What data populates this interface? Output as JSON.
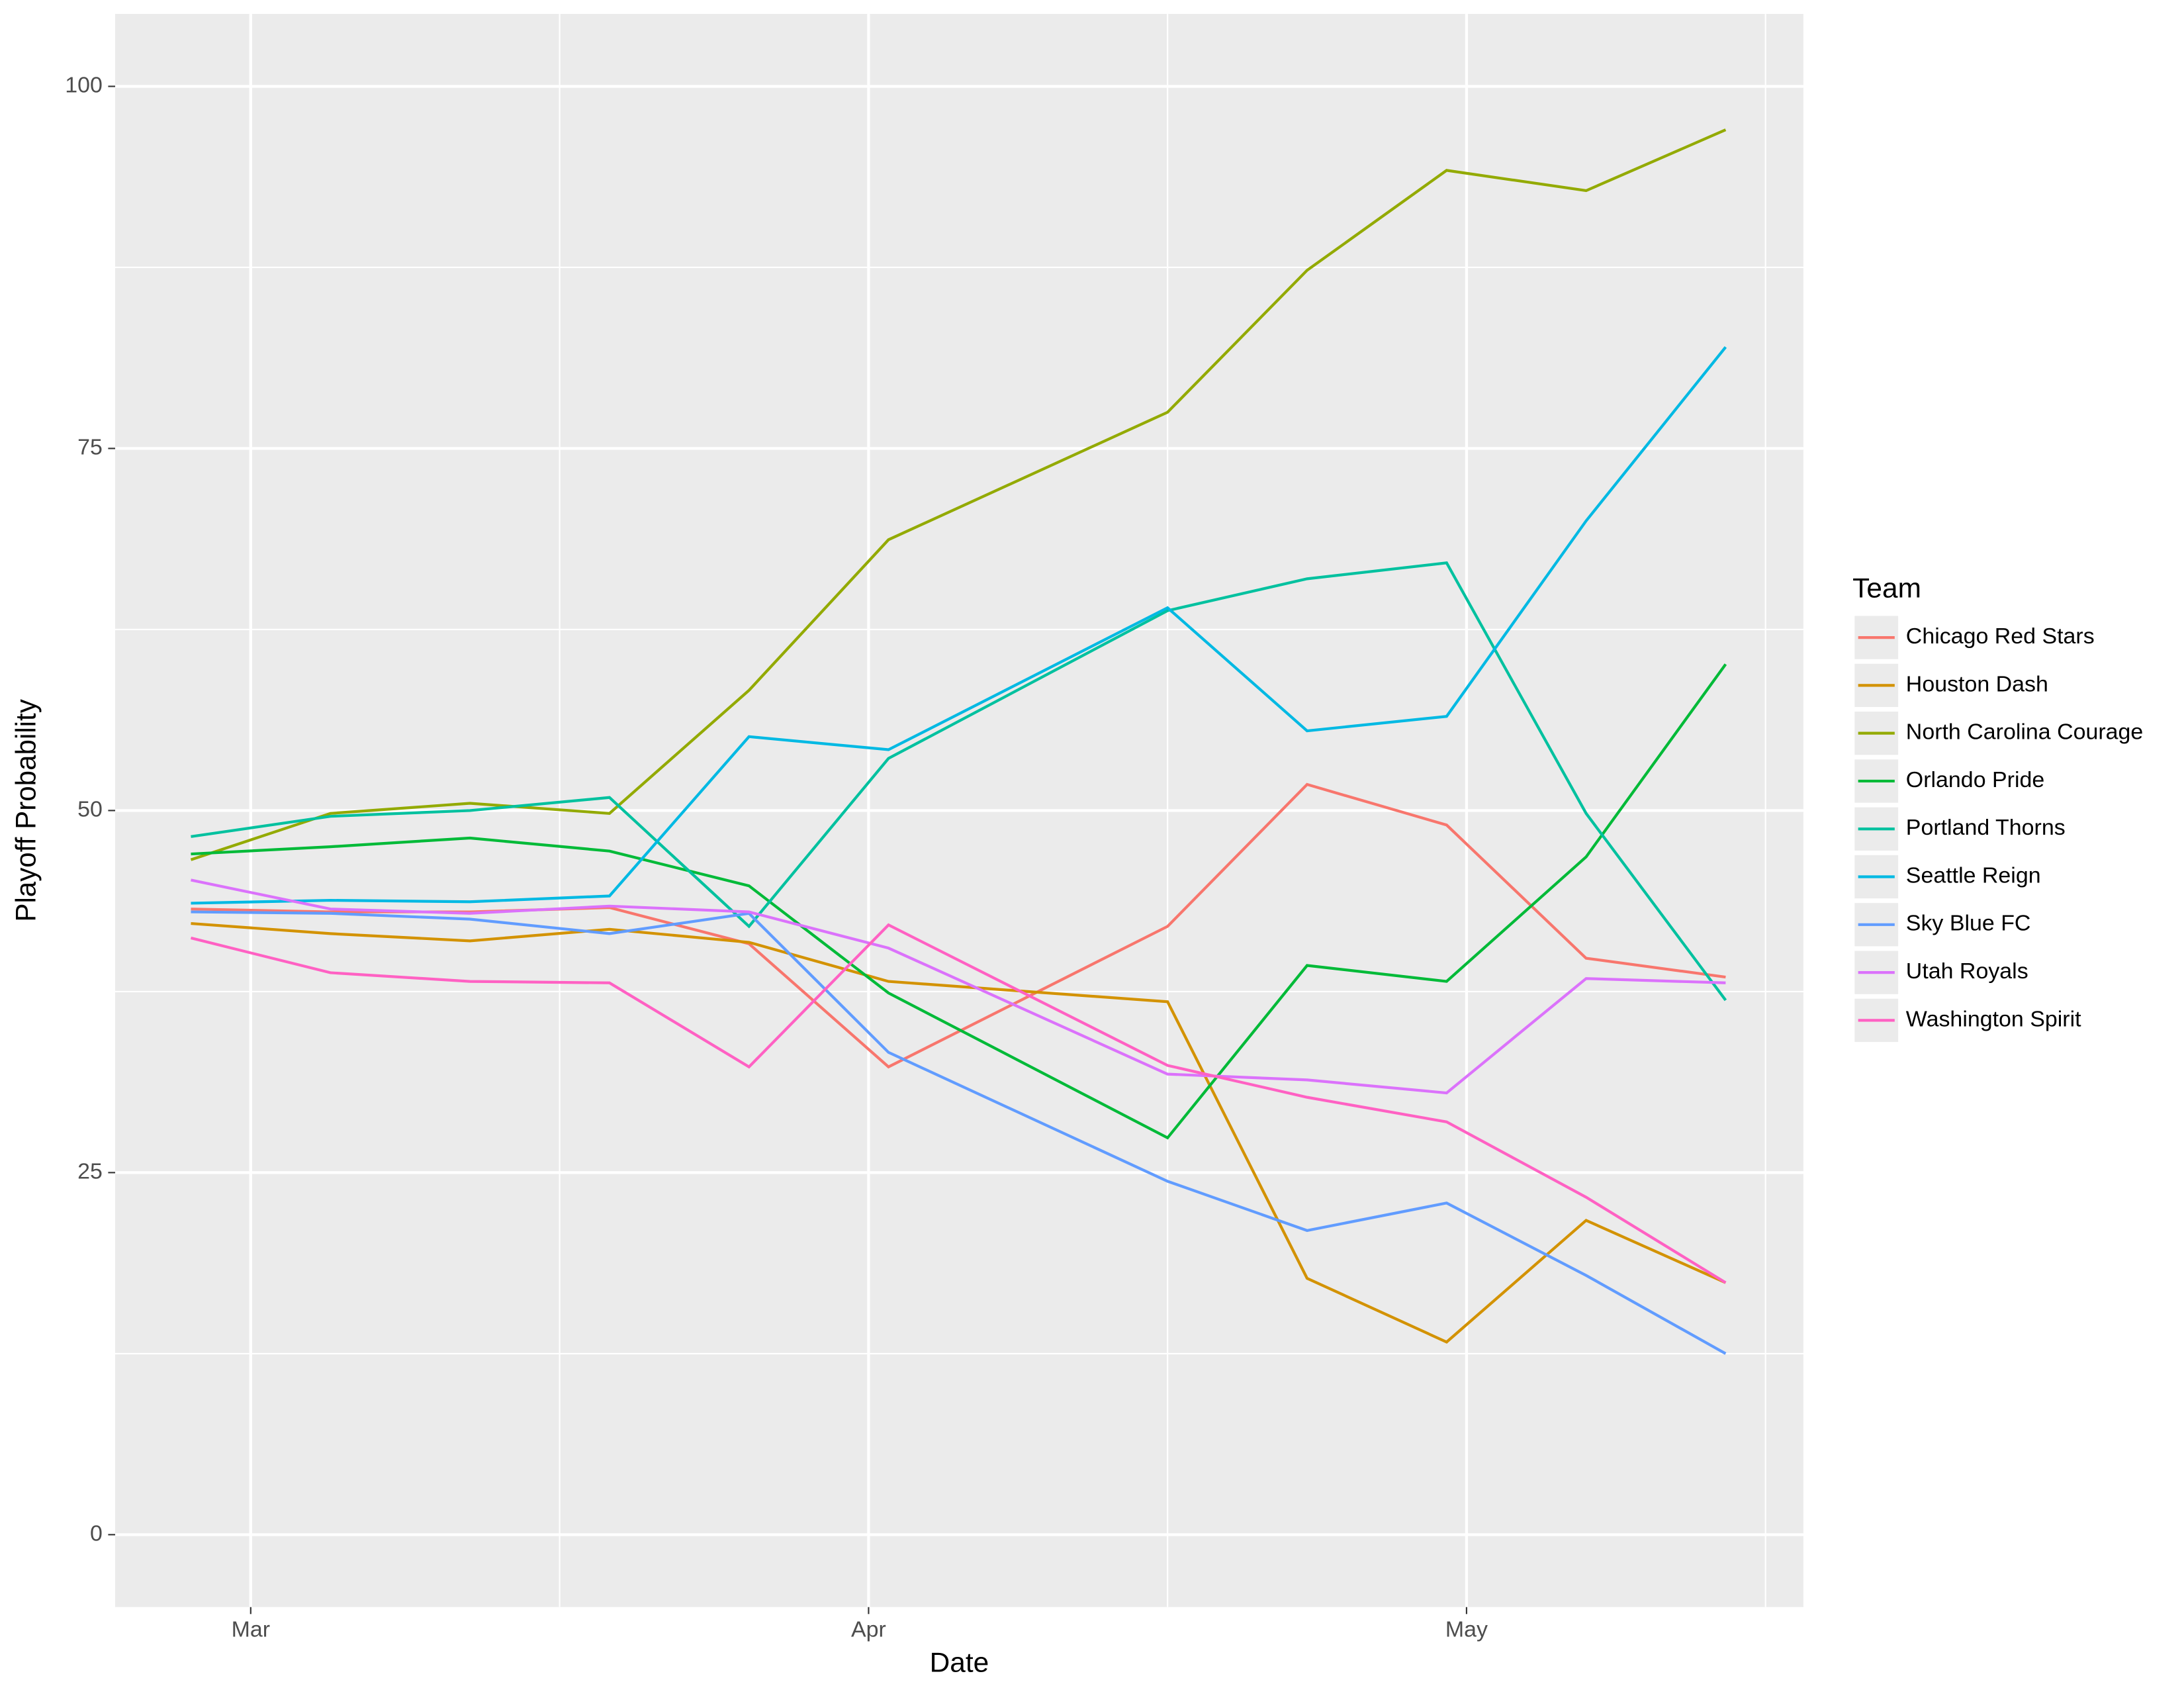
{
  "chart_data": {
    "type": "line",
    "x_label": "Date",
    "y_label": "Playoff Probability",
    "legend_title": "Team",
    "legend_position": "right",
    "grid": true,
    "x": [
      -3,
      4,
      11,
      18,
      25,
      32,
      46,
      53,
      60,
      67,
      74
    ],
    "xlim": [
      -6.8,
      77.9
    ],
    "xticks": [
      {
        "value": 0,
        "label": "Mar"
      },
      {
        "value": 31,
        "label": "Apr"
      },
      {
        "value": 61,
        "label": "May"
      }
    ],
    "ylim": [
      -5,
      105
    ],
    "yticks": [
      0,
      25,
      50,
      75,
      100
    ],
    "series": [
      {
        "name": "Chicago Red Stars",
        "color": "#F8766D",
        "values": [
          43.2,
          43.0,
          43.0,
          43.3,
          40.8,
          32.3,
          42.0,
          51.8,
          49.0,
          39.8,
          38.5
        ]
      },
      {
        "name": "Houston Dash",
        "color": "#D39200",
        "values": [
          42.2,
          41.5,
          41.0,
          41.8,
          40.9,
          38.2,
          36.8,
          17.7,
          13.3,
          21.7,
          17.4
        ]
      },
      {
        "name": "North Carolina Courage",
        "color": "#93AA00",
        "values": [
          46.6,
          49.8,
          50.5,
          49.8,
          58.3,
          68.7,
          77.5,
          87.3,
          94.2,
          92.8,
          97.0
        ]
      },
      {
        "name": "Orlando Pride",
        "color": "#00BA38",
        "values": [
          47.0,
          47.5,
          48.1,
          47.2,
          44.8,
          37.4,
          27.4,
          39.3,
          38.2,
          46.8,
          60.1
        ]
      },
      {
        "name": "Portland Thorns",
        "color": "#00C19F",
        "values": [
          48.2,
          49.6,
          50.0,
          50.9,
          42.0,
          53.6,
          63.8,
          66.0,
          67.1,
          49.8,
          36.9
        ]
      },
      {
        "name": "Seattle Reign",
        "color": "#00B9E3",
        "values": [
          43.6,
          43.8,
          43.7,
          44.1,
          55.1,
          54.2,
          64.0,
          55.5,
          56.5,
          70.0,
          82.0
        ]
      },
      {
        "name": "Sky Blue FC",
        "color": "#619CFF",
        "values": [
          43.0,
          42.9,
          42.5,
          41.5,
          42.9,
          33.3,
          24.4,
          21.0,
          22.9,
          17.9,
          12.5
        ]
      },
      {
        "name": "Utah Royals",
        "color": "#DB72FB",
        "values": [
          45.2,
          43.2,
          42.9,
          43.4,
          43.0,
          40.5,
          31.8,
          31.4,
          30.5,
          38.4,
          38.1
        ]
      },
      {
        "name": "Washington Spirit",
        "color": "#FF61C3",
        "values": [
          41.2,
          38.8,
          38.2,
          38.1,
          32.3,
          42.1,
          32.4,
          30.2,
          28.5,
          23.3,
          17.4
        ]
      }
    ]
  }
}
